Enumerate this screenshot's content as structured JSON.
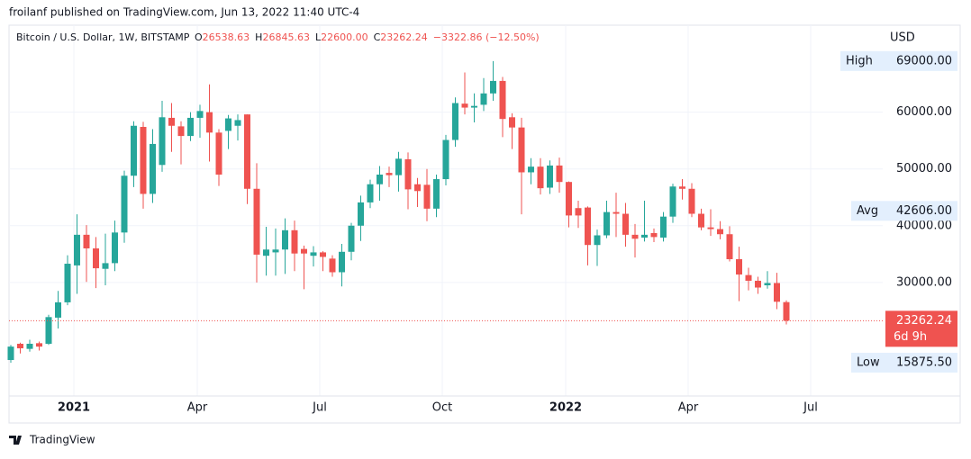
{
  "published": "froilanf published on TradingView.com, Jun 13, 2022 11:40 UTC-4",
  "footer": "TradingView",
  "chart_data": {
    "type": "candlestick",
    "title": "Bitcoin / U.S. Dollar, 1W, BITSTAMP",
    "header": [
      {
        "letter": "O",
        "text": "26538.63"
      },
      {
        "letter": "H",
        "text": "26845.63"
      },
      {
        "letter": "L",
        "text": "22600.00"
      },
      {
        "letter": "C",
        "text": "23262.24"
      }
    ],
    "change": "−3322.86 (−12.50%)",
    "currency": "USD",
    "up_color": "#26a69a",
    "down_color": "#ef5350",
    "open": [
      16340,
      19200,
      18300,
      19300,
      19200,
      23800,
      26500,
      33000,
      38400,
      36000,
      32400,
      33400,
      38800,
      48800,
      57400,
      45600,
      50700,
      59000,
      57500,
      55800,
      59000,
      60000,
      56400,
      56700,
      57600,
      59600,
      46500,
      34700,
      35300,
      35800,
      39200,
      35900,
      34700,
      35300,
      34200,
      31800,
      35400,
      40000,
      44100,
      47300,
      49300,
      48900,
      51700,
      47300,
      47200,
      43000,
      48200,
      55100,
      61500,
      60800,
      61300,
      63300,
      65500,
      59100,
      57300,
      49400,
      50400,
      46700,
      50600,
      47700,
      43100,
      43200,
      36600,
      38300,
      42400,
      42100,
      38400,
      37900,
      38700,
      37900,
      41600,
      46900,
      46500,
      42100,
      39700,
      39400,
      38500,
      34100,
      31300,
      30300,
      29500,
      29900,
      26538.63
    ],
    "high": [
      19000,
      19400,
      19900,
      19600,
      24300,
      28500,
      34800,
      42000,
      40100,
      38000,
      38600,
      40900,
      49700,
      58400,
      58300,
      57000,
      62000,
      61600,
      58400,
      60000,
      61300,
      64900,
      57000,
      59500,
      59600,
      59600,
      51000,
      39800,
      39500,
      41300,
      40900,
      36500,
      36400,
      35500,
      34800,
      36800,
      40500,
      45300,
      48100,
      50500,
      50400,
      53000,
      52900,
      48400,
      50000,
      49000,
      56000,
      62600,
      67000,
      63300,
      66000,
      69000,
      66200,
      59800,
      59000,
      51900,
      51900,
      51500,
      52000,
      47800,
      44400,
      43400,
      39300,
      44400,
      45800,
      44000,
      40300,
      44400,
      39500,
      42400,
      47400,
      48200,
      47500,
      43000,
      42900,
      40800,
      39900,
      36300,
      32600,
      31000,
      32000,
      31700,
      26845.63
    ],
    "low": [
      15875.5,
      17500,
      17800,
      18000,
      19000,
      21900,
      26000,
      28000,
      30100,
      29000,
      29500,
      32000,
      37000,
      46800,
      43000,
      44000,
      49500,
      53000,
      50800,
      54900,
      55500,
      51300,
      47000,
      53500,
      55000,
      43800,
      30000,
      31200,
      31200,
      31500,
      32000,
      28800,
      32800,
      32000,
      31000,
      29300,
      33900,
      37300,
      43100,
      44400,
      46800,
      46000,
      42900,
      43300,
      40800,
      41500,
      47100,
      53900,
      59600,
      58200,
      60200,
      62000,
      55600,
      53500,
      42000,
      47300,
      45500,
      45600,
      45800,
      39700,
      39600,
      33000,
      32900,
      37800,
      38000,
      36300,
      34400,
      37200,
      37100,
      37200,
      40500,
      44600,
      41500,
      39200,
      38200,
      37600,
      33700,
      26700,
      28600,
      28000,
      28900,
      25300,
      22600
    ],
    "close": [
      18700,
      18400,
      19200,
      18700,
      23900,
      26500,
      33300,
      38400,
      36000,
      32500,
      33400,
      38800,
      48800,
      57600,
      45600,
      54400,
      59100,
      57600,
      55800,
      59000,
      60200,
      56400,
      49000,
      58900,
      58600,
      46500,
      34900,
      35800,
      35800,
      39200,
      35100,
      35100,
      35300,
      34500,
      31800,
      35400,
      40000,
      44100,
      47300,
      49000,
      48900,
      51800,
      46400,
      46100,
      43000,
      48200,
      55100,
      61600,
      60800,
      61100,
      63300,
      65500,
      58800,
      57300,
      49400,
      50400,
      46600,
      50600,
      47700,
      41800,
      41800,
      36600,
      38300,
      42400,
      42100,
      38400,
      37700,
      38400,
      38000,
      41600,
      46900,
      46500,
      42100,
      39700,
      39400,
      38500,
      34100,
      31400,
      30300,
      29100,
      29900,
      26600,
      23262.24
    ],
    "ylim": [
      10000,
      75000
    ],
    "yticks": [
      {
        "value": 30000,
        "label": "30000.00"
      },
      {
        "value": 40000,
        "label": "40000.00"
      },
      {
        "value": 50000,
        "label": "50000.00"
      },
      {
        "value": 60000,
        "label": "60000.00"
      }
    ],
    "xticks": [
      "2021",
      "Apr",
      "Jul",
      "Oct",
      "2022",
      "Apr",
      "Jul"
    ],
    "grid": true,
    "markers": [
      {
        "name": "High",
        "value": 69000,
        "label": "69000.00"
      },
      {
        "name": "Avg",
        "value": 42606,
        "label": "42606.00"
      },
      {
        "name": "Low",
        "value": 15875.5,
        "label": "15875.50"
      }
    ],
    "last_price": {
      "value": 23262.24,
      "label": "23262.24"
    },
    "countdown": "6d 9h"
  }
}
